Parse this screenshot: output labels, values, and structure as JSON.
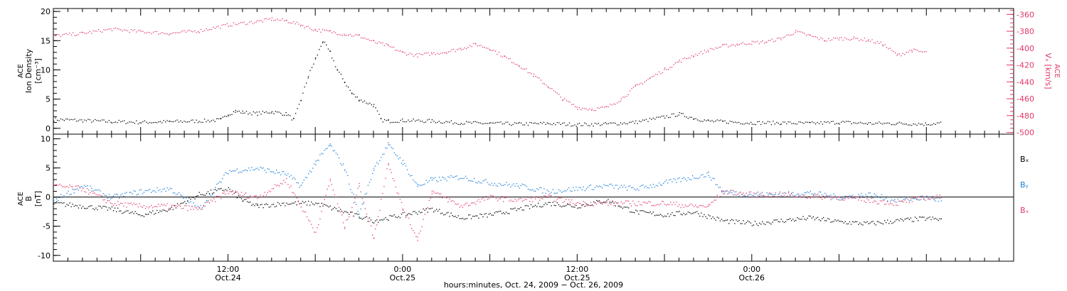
{
  "colors": {
    "density": "#000000",
    "velocity": "#e23a68",
    "bx": "#000000",
    "by": "#1a7fd8",
    "bz": "#e23a68",
    "axis": "#000000"
  },
  "chart_data": [
    {
      "type": "scatter",
      "panel": "top",
      "left_axis": {
        "label_lines": [
          "ACE",
          "Ion Density",
          "[cm⁻³]"
        ],
        "ylim": [
          -1,
          20.5
        ],
        "ticks": [
          0,
          5,
          10,
          15,
          20
        ],
        "tick_labels": [
          "0",
          "5",
          "10",
          "15",
          "20"
        ]
      },
      "right_axis": {
        "label_lines": [
          "ACE",
          "Vₓ [km/s]"
        ],
        "ylim": [
          -502,
          -353
        ],
        "ticks": [
          -500,
          -480,
          -460,
          -440,
          -420,
          -400,
          -380,
          -360
        ],
        "tick_labels": [
          "-500",
          "-480",
          "-460",
          "-440",
          "-420",
          "-400",
          "-380",
          "-360"
        ]
      },
      "series": [
        {
          "axis": "left",
          "color": "density",
          "points": [
            [
              0,
              1.6
            ],
            [
              2,
              1.4
            ],
            [
              4,
              1.2
            ],
            [
              6,
              1.1
            ],
            [
              8,
              1.2
            ],
            [
              10,
              1.3
            ],
            [
              11.5,
              1.5
            ],
            [
              12,
              2.5
            ],
            [
              12.5,
              3
            ],
            [
              13,
              2.8
            ],
            [
              14,
              2.6
            ],
            [
              15,
              2.9
            ],
            [
              16,
              2.5
            ],
            [
              16.5,
              1.5
            ],
            [
              17,
              5
            ],
            [
              17.5,
              9
            ],
            [
              18,
              12
            ],
            [
              18.5,
              15
            ],
            [
              19,
              13
            ],
            [
              19.5,
              10
            ],
            [
              20,
              8
            ],
            [
              20.5,
              6
            ],
            [
              21,
              5
            ],
            [
              22,
              4
            ],
            [
              22.5,
              1.5
            ],
            [
              23,
              1.3
            ],
            [
              24,
              1.4
            ],
            [
              26,
              1.3
            ],
            [
              28,
              1
            ],
            [
              30,
              0.9
            ],
            [
              32,
              0.8
            ],
            [
              34,
              0.9
            ],
            [
              36,
              0.7
            ],
            [
              38,
              0.8
            ],
            [
              40,
              1.1
            ],
            [
              42,
              2
            ],
            [
              43,
              2.5
            ],
            [
              44,
              1.8
            ],
            [
              45,
              1.3
            ],
            [
              46,
              1.2
            ],
            [
              48,
              1
            ],
            [
              50,
              1
            ],
            [
              52,
              0.9
            ],
            [
              54,
              1.1
            ],
            [
              56,
              0.9
            ],
            [
              58,
              0.9
            ],
            [
              60,
              0.8
            ],
            [
              61,
              1
            ]
          ]
        },
        {
          "axis": "right",
          "color": "velocity",
          "points": [
            [
              0,
              -385
            ],
            [
              2,
              -382
            ],
            [
              4,
              -377
            ],
            [
              6,
              -380
            ],
            [
              8,
              -382
            ],
            [
              10,
              -379
            ],
            [
              12,
              -372
            ],
            [
              14,
              -368
            ],
            [
              15,
              -365
            ],
            [
              16,
              -367
            ],
            [
              17,
              -372
            ],
            [
              18,
              -378
            ],
            [
              19,
              -380
            ],
            [
              20,
              -383
            ],
            [
              21,
              -385
            ],
            [
              22,
              -392
            ],
            [
              23,
              -397
            ],
            [
              24,
              -405
            ],
            [
              25,
              -408
            ],
            [
              26,
              -406
            ],
            [
              27,
              -404
            ],
            [
              28,
              -400
            ],
            [
              29,
              -395
            ],
            [
              30,
              -400
            ],
            [
              31,
              -410
            ],
            [
              32,
              -420
            ],
            [
              33,
              -432
            ],
            [
              34,
              -445
            ],
            [
              35,
              -460
            ],
            [
              36,
              -470
            ],
            [
              37,
              -472
            ],
            [
              38,
              -470
            ],
            [
              39,
              -460
            ],
            [
              40,
              -445
            ],
            [
              41,
              -435
            ],
            [
              42,
              -425
            ],
            [
              43,
              -415
            ],
            [
              44,
              -408
            ],
            [
              45,
              -402
            ],
            [
              46,
              -397
            ],
            [
              47,
              -395
            ],
            [
              48,
              -393
            ],
            [
              49,
              -392
            ],
            [
              50,
              -388
            ],
            [
              51,
              -380
            ],
            [
              52,
              -385
            ],
            [
              53,
              -390
            ],
            [
              54,
              -388
            ],
            [
              55,
              -388
            ],
            [
              56,
              -390
            ],
            [
              57,
              -395
            ],
            [
              58,
              -408
            ],
            [
              59,
              -402
            ],
            [
              60,
              -405
            ]
          ]
        }
      ]
    },
    {
      "type": "scatter",
      "panel": "bottom",
      "left_axis": {
        "label_lines": [
          "ACE",
          "B",
          "[nT]"
        ],
        "ylim": [
          -11,
          10.8
        ],
        "ticks": [
          -10,
          -5,
          0,
          5,
          10
        ],
        "tick_labels": [
          "-10",
          "-5",
          "0",
          "5",
          "10"
        ]
      },
      "zero_line": true,
      "legend": [
        "Bₓ",
        "Bᵧ",
        "Bₓ"
      ],
      "legend_placement": "right",
      "series": [
        {
          "name": "Bₓ",
          "color": "bx",
          "points": [
            [
              0,
              -1
            ],
            [
              2,
              -1.5
            ],
            [
              4,
              -2
            ],
            [
              6,
              -3
            ],
            [
              8,
              -2
            ],
            [
              10,
              0.5
            ],
            [
              12,
              1.5
            ],
            [
              13,
              -0.5
            ],
            [
              14,
              -1.5
            ],
            [
              16,
              -1
            ],
            [
              18,
              -1
            ],
            [
              20,
              -2.5
            ],
            [
              22,
              -4
            ],
            [
              24,
              -3
            ],
            [
              26,
              -2
            ],
            [
              28,
              -3.5
            ],
            [
              30,
              -3
            ],
            [
              32,
              -2
            ],
            [
              34,
              -1
            ],
            [
              36,
              -1.5
            ],
            [
              38,
              -0.5
            ],
            [
              40,
              -2.5
            ],
            [
              42,
              -3
            ],
            [
              44,
              -2.5
            ],
            [
              46,
              -4
            ],
            [
              48,
              -4.5
            ],
            [
              50,
              -4
            ],
            [
              52,
              -3.5
            ],
            [
              54,
              -4.2
            ],
            [
              56,
              -4.5
            ],
            [
              58,
              -4
            ],
            [
              60,
              -3.6
            ],
            [
              61,
              -3.8
            ]
          ]
        },
        {
          "name": "Bᵧ",
          "color": "by",
          "points": [
            [
              0,
              -0.5
            ],
            [
              2,
              2
            ],
            [
              4,
              0
            ],
            [
              6,
              1
            ],
            [
              8,
              1.5
            ],
            [
              10,
              -2
            ],
            [
              12,
              4.5
            ],
            [
              14,
              5
            ],
            [
              16,
              4
            ],
            [
              17,
              2
            ],
            [
              18,
              6
            ],
            [
              19,
              9
            ],
            [
              20,
              5
            ],
            [
              21,
              -3
            ],
            [
              22,
              5
            ],
            [
              23,
              9
            ],
            [
              24,
              6
            ],
            [
              25,
              2
            ],
            [
              26,
              3
            ],
            [
              28,
              3.5
            ],
            [
              30,
              2.5
            ],
            [
              32,
              2
            ],
            [
              34,
              1
            ],
            [
              36,
              1.5
            ],
            [
              38,
              2
            ],
            [
              40,
              1.5
            ],
            [
              42,
              2.5
            ],
            [
              44,
              3.5
            ],
            [
              45,
              4
            ],
            [
              46,
              1
            ],
            [
              48,
              0.5
            ],
            [
              50,
              0.5
            ],
            [
              52,
              0.8
            ],
            [
              54,
              0
            ],
            [
              56,
              0.5
            ],
            [
              58,
              -0.5
            ],
            [
              60,
              0
            ],
            [
              61,
              -0.5
            ]
          ]
        },
        {
          "name": "Bₓ",
          "color": "bz",
          "points": [
            [
              0,
              2
            ],
            [
              2,
              1.5
            ],
            [
              4,
              -1
            ],
            [
              6,
              -1.5
            ],
            [
              8,
              -1.5
            ],
            [
              10,
              -2
            ],
            [
              12,
              1
            ],
            [
              14,
              0
            ],
            [
              16,
              3
            ],
            [
              18,
              -6
            ],
            [
              19,
              3
            ],
            [
              20,
              -5
            ],
            [
              21,
              2
            ],
            [
              22,
              -7
            ],
            [
              23,
              6
            ],
            [
              24,
              -2
            ],
            [
              25,
              -7
            ],
            [
              26,
              1
            ],
            [
              28,
              -1.5
            ],
            [
              30,
              0
            ],
            [
              32,
              -0.5
            ],
            [
              34,
              0
            ],
            [
              36,
              -1
            ],
            [
              38,
              -1
            ],
            [
              40,
              -1
            ],
            [
              42,
              -1
            ],
            [
              44,
              -1.5
            ],
            [
              45,
              -1.5
            ],
            [
              46,
              1
            ],
            [
              48,
              0.5
            ],
            [
              50,
              0.5
            ],
            [
              52,
              0.2
            ],
            [
              54,
              0
            ],
            [
              56,
              -0.5
            ],
            [
              58,
              -1
            ],
            [
              60,
              0
            ],
            [
              61,
              0
            ]
          ]
        }
      ]
    }
  ],
  "x_axis": {
    "xlim": [
      0,
      66
    ],
    "major_ticks": [
      0,
      6,
      12,
      18,
      24,
      30,
      36,
      42,
      48,
      54,
      60,
      66
    ],
    "labeled_ticks": [
      {
        "x": 12,
        "time": "12:00",
        "date": "Oct.24"
      },
      {
        "x": 24,
        "time": "0:00",
        "date": "Oct.25"
      },
      {
        "x": 36,
        "time": "12:00",
        "date": "Oct.25"
      },
      {
        "x": 48,
        "time": "0:00",
        "date": "Oct.26"
      }
    ],
    "title": "hours:minutes, Oct. 24, 2009 − Oct. 26, 2009"
  }
}
